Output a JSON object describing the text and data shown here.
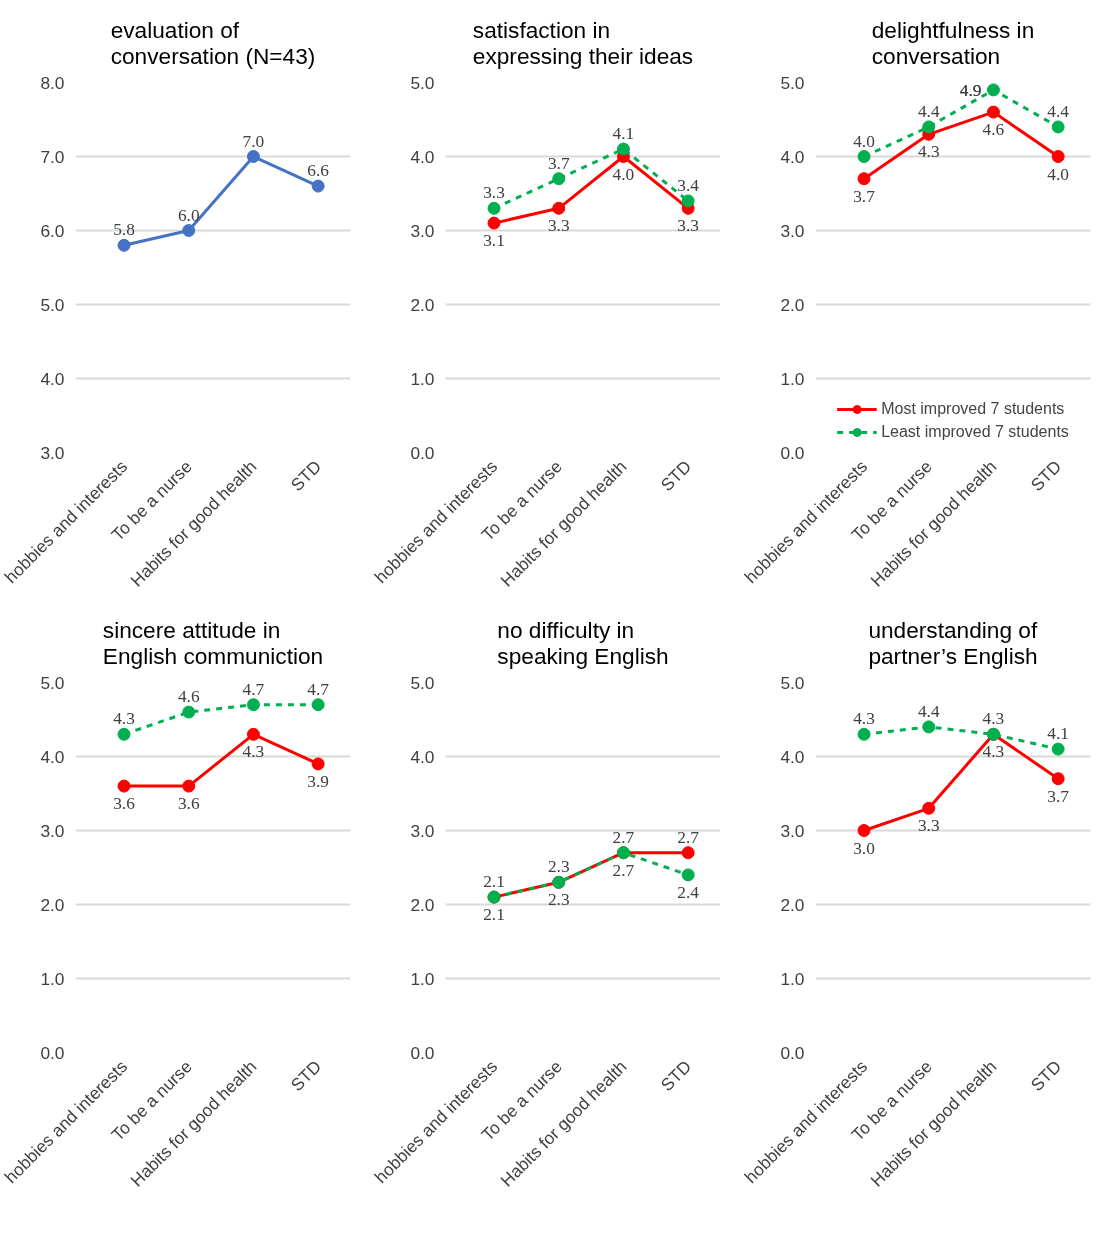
{
  "chart_data": [
    {
      "type": "line",
      "title": "evaluation of conversation (N=43)",
      "categories": [
        "hobbies and interests",
        "To be a nurse",
        "Habits for good health",
        "STD"
      ],
      "series": [
        {
          "color": "#4472c4",
          "values": [
            5.8,
            6.0,
            7.0,
            6.6
          ],
          "value_labels": [
            "5.8",
            "6.0",
            "7.0",
            "6.6"
          ],
          "line_style": "solid"
        }
      ],
      "ylim": [
        3,
        8
      ],
      "yticks": [
        {
          "value": 3,
          "label": "3.0"
        },
        {
          "value": 4,
          "label": "4.0"
        },
        {
          "value": 5,
          "label": "5.0"
        },
        {
          "value": 6,
          "label": "6.0"
        },
        {
          "value": 7,
          "label": "7.0"
        },
        {
          "value": 8,
          "label": "8.0"
        }
      ],
      "grid": "y",
      "marker": "circle"
    },
    {
      "type": "line",
      "title": "satisfaction in expressing their ideas",
      "categories": [
        "hobbies and interests",
        "To be a nurse",
        "Habits for good health",
        "STD"
      ],
      "series": [
        {
          "color": "#ff0000",
          "values": [
            3.1,
            3.3,
            4.0,
            3.3
          ],
          "value_labels": [
            "3.1",
            "3.3",
            "4.0",
            "3.3"
          ],
          "line_style": "solid"
        },
        {
          "color": "#00b050",
          "values": [
            3.3,
            3.7,
            4.1,
            3.4
          ],
          "value_labels": [
            "3.3",
            "3.7",
            "4.1",
            "3.4"
          ],
          "line_style": "dashed"
        }
      ],
      "ylim": [
        0,
        5
      ],
      "yticks": [
        {
          "value": 0,
          "label": "0.0"
        },
        {
          "value": 1,
          "label": "1.0"
        },
        {
          "value": 2,
          "label": "2.0"
        },
        {
          "value": 3,
          "label": "3.0"
        },
        {
          "value": 4,
          "label": "4.0"
        },
        {
          "value": 5,
          "label": "5.0"
        }
      ],
      "grid": "y",
      "marker": "circle"
    },
    {
      "type": "line",
      "title": "delightfulness in conversation",
      "categories": [
        "hobbies and interests",
        "To be a nurse",
        "Habits for good health",
        "STD"
      ],
      "series": [
        {
          "name": "Most improved 7 students",
          "color": "#ff0000",
          "values": [
            3.7,
            4.3,
            4.6,
            4.0
          ],
          "value_labels": [
            "3.7",
            "4.3",
            "4.6",
            "4.0"
          ],
          "line_style": "solid"
        },
        {
          "name": "Least improved 7 students",
          "color": "#00b050",
          "values": [
            4.0,
            4.4,
            4.9,
            4.4
          ],
          "value_labels": [
            "4.0",
            "4.4",
            "4.9",
            "4.4"
          ],
          "line_style": "dashed"
        }
      ],
      "ylim": [
        0,
        5
      ],
      "yticks": [
        {
          "value": 0,
          "label": "0.0"
        },
        {
          "value": 1,
          "label": "1.0"
        },
        {
          "value": 2,
          "label": "2.0"
        },
        {
          "value": 3,
          "label": "3.0"
        },
        {
          "value": 4,
          "label": "4.0"
        },
        {
          "value": 5,
          "label": "5.0"
        }
      ],
      "grid": "y",
      "marker": "circle",
      "legend": "bottom"
    },
    {
      "type": "line",
      "title": "sincere attitude in English communiction",
      "categories": [
        "hobbies and interests",
        "To be a nurse",
        "Habits for good health",
        "STD"
      ],
      "series": [
        {
          "color": "#ff0000",
          "values": [
            3.6,
            3.6,
            4.3,
            3.9
          ],
          "value_labels": [
            "3.6",
            "3.6",
            "4.3",
            "3.9"
          ],
          "line_style": "solid"
        },
        {
          "color": "#00b050",
          "values": [
            4.3,
            4.6,
            4.7,
            4.7
          ],
          "value_labels": [
            "4.3",
            "4.6",
            "4.7",
            "4.7"
          ],
          "line_style": "dashed"
        }
      ],
      "ylim": [
        0,
        5
      ],
      "yticks": [
        {
          "value": 0,
          "label": "0.0"
        },
        {
          "value": 1,
          "label": "1.0"
        },
        {
          "value": 2,
          "label": "2.0"
        },
        {
          "value": 3,
          "label": "3.0"
        },
        {
          "value": 4,
          "label": "4.0"
        },
        {
          "value": 5,
          "label": "5.0"
        }
      ],
      "grid": "y",
      "marker": "circle"
    },
    {
      "type": "line",
      "title": "no difficulty in speaking English",
      "categories": [
        "hobbies and interests",
        "To be a nurse",
        "Habits for good health",
        "STD"
      ],
      "series": [
        {
          "color": "#ff0000",
          "values": [
            2.1,
            2.3,
            2.7,
            2.7
          ],
          "value_labels": [
            "2.1",
            "2.3",
            "2.7",
            "2.7"
          ],
          "line_style": "solid"
        },
        {
          "color": "#00b050",
          "values": [
            2.1,
            2.3,
            2.7,
            2.4
          ],
          "value_labels": [
            "2.1",
            "2.3",
            "2.7",
            "2.4"
          ],
          "line_style": "dashed"
        }
      ],
      "ylim": [
        0,
        5
      ],
      "yticks": [
        {
          "value": 0,
          "label": "0.0"
        },
        {
          "value": 1,
          "label": "1.0"
        },
        {
          "value": 2,
          "label": "2.0"
        },
        {
          "value": 3,
          "label": "3.0"
        },
        {
          "value": 4,
          "label": "4.0"
        },
        {
          "value": 5,
          "label": "5.0"
        }
      ],
      "grid": "y",
      "marker": "circle"
    },
    {
      "type": "line",
      "title": "understanding of partner’s English",
      "categories": [
        "hobbies and interests",
        "To be a nurse",
        "Habits for good health",
        "STD"
      ],
      "series": [
        {
          "color": "#ff0000",
          "values": [
            3.0,
            3.3,
            4.3,
            3.7
          ],
          "value_labels": [
            "3.0",
            "3.3",
            "4.3",
            "3.7"
          ],
          "line_style": "solid"
        },
        {
          "color": "#00b050",
          "values": [
            4.3,
            4.4,
            4.3,
            4.1
          ],
          "value_labels": [
            "4.3",
            "4.4",
            "4.3",
            "4.1"
          ],
          "line_style": "dashed"
        }
      ],
      "ylim": [
        0,
        5
      ],
      "yticks": [
        {
          "value": 0,
          "label": "0.0"
        },
        {
          "value": 1,
          "label": "1.0"
        },
        {
          "value": 2,
          "label": "2.0"
        },
        {
          "value": 3,
          "label": "3.0"
        },
        {
          "value": 4,
          "label": "4.0"
        },
        {
          "value": 5,
          "label": "5.0"
        }
      ],
      "grid": "y",
      "marker": "circle"
    }
  ]
}
